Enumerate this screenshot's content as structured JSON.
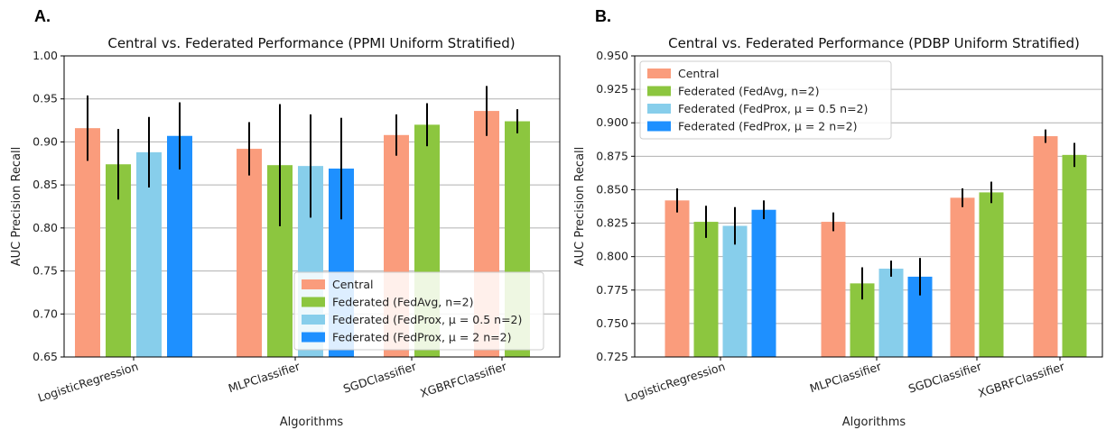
{
  "panels": {
    "a": {
      "letter": "A."
    },
    "b": {
      "letter": "B."
    }
  },
  "chart_data": [
    {
      "type": "bar",
      "title": "Central vs. Federated Performance (PPMI Uniform Stratified)",
      "xlabel": "Algorithms",
      "ylabel": "AUC Precision Recall",
      "ylim": [
        0.65,
        1.0
      ],
      "yticks": [
        "0.65",
        "0.70",
        "0.75",
        "0.80",
        "0.85",
        "0.90",
        "0.95",
        "1.00"
      ],
      "grid": "horizontal",
      "legend_position": "lower-right",
      "categories": [
        "LogisticRegression",
        "MLPClassifier",
        "SGDClassifier",
        "XGBRFClassifier"
      ],
      "series": [
        {
          "name": "Central",
          "color": "#fa9c7c",
          "values": [
            0.916,
            0.892,
            0.908,
            0.936
          ],
          "errors": [
            0.038,
            0.031,
            0.024,
            0.029
          ]
        },
        {
          "name": "Federated (FedAvg, n=2)",
          "color": "#8cc63f",
          "values": [
            0.874,
            0.873,
            0.92,
            0.924
          ],
          "errors": [
            0.041,
            0.071,
            0.025,
            0.014
          ]
        },
        {
          "name": "Federated (FedProx, μ = 0.5 n=2)",
          "color": "#87ceeb",
          "values": [
            0.888,
            0.872,
            null,
            null
          ],
          "errors": [
            0.041,
            0.06,
            null,
            null
          ]
        },
        {
          "name": "Federated (FedProx, μ = 2 n=2)",
          "color": "#1e90ff",
          "values": [
            0.907,
            0.869,
            null,
            null
          ],
          "errors": [
            0.039,
            0.059,
            null,
            null
          ]
        }
      ]
    },
    {
      "type": "bar",
      "title": "Central vs. Federated Performance (PDBP Uniform Stratified)",
      "xlabel": "Algorithms",
      "ylabel": "AUC Precision Recall",
      "ylim": [
        0.725,
        0.95
      ],
      "yticks": [
        "0.725",
        "0.750",
        "0.775",
        "0.800",
        "0.825",
        "0.850",
        "0.875",
        "0.900",
        "0.925",
        "0.950"
      ],
      "grid": "horizontal",
      "legend_position": "upper-left",
      "categories": [
        "LogisticRegression",
        "MLPClassifier",
        "SGDClassifier",
        "XGBRFClassifier"
      ],
      "series": [
        {
          "name": "Central",
          "color": "#fa9c7c",
          "values": [
            0.842,
            0.826,
            0.844,
            0.89
          ],
          "errors": [
            0.009,
            0.007,
            0.007,
            0.005
          ]
        },
        {
          "name": "Federated (FedAvg, n=2)",
          "color": "#8cc63f",
          "values": [
            0.826,
            0.78,
            0.848,
            0.876
          ],
          "errors": [
            0.012,
            0.012,
            0.008,
            0.009
          ]
        },
        {
          "name": "Federated (FedProx, μ = 0.5 n=2)",
          "color": "#87ceeb",
          "values": [
            0.823,
            0.791,
            null,
            null
          ],
          "errors": [
            0.014,
            0.006,
            null,
            null
          ]
        },
        {
          "name": "Federated (FedProx, μ = 2 n=2)",
          "color": "#1e90ff",
          "values": [
            0.835,
            0.785,
            null,
            null
          ],
          "errors": [
            0.007,
            0.014,
            null,
            null
          ]
        }
      ]
    }
  ]
}
